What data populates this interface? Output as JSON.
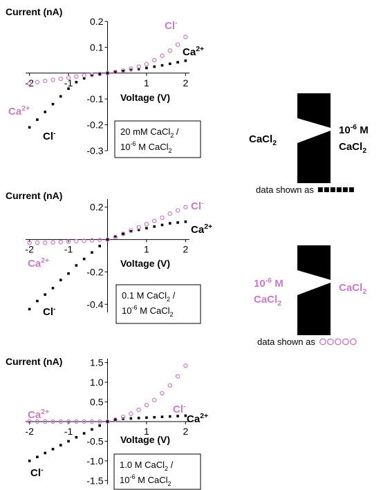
{
  "chart_data": [
    {
      "type": "scatter",
      "ylabel": "Current (nA)",
      "xlabel": "Voltage (V)",
      "x": [
        -2,
        -1.8,
        -1.6,
        -1.4,
        -1.2,
        -1,
        -0.8,
        -0.6,
        -0.4,
        -0.2,
        0,
        0.2,
        0.4,
        0.6,
        0.8,
        1,
        1.2,
        1.4,
        1.6,
        1.8,
        2
      ],
      "series": [
        {
          "color": "#000000",
          "marker": "square",
          "values": [
            -0.21,
            -0.18,
            -0.15,
            -0.12,
            -0.09,
            -0.06,
            -0.035,
            -0.02,
            -0.01,
            -0.004,
            0,
            0.004,
            0.008,
            0.012,
            0.016,
            0.02,
            0.025,
            0.03,
            0.036,
            0.042,
            0.048
          ]
        },
        {
          "color": "#cc79c8",
          "marker": "circle",
          "values": [
            -0.04,
            -0.035,
            -0.03,
            -0.026,
            -0.022,
            -0.018,
            -0.013,
            -0.009,
            -0.006,
            -0.003,
            0,
            0.005,
            0.01,
            0.017,
            0.025,
            0.035,
            0.05,
            0.067,
            0.087,
            0.11,
            0.14
          ]
        }
      ],
      "xlim": [
        -2.1,
        2.1
      ],
      "xticks": [
        -2,
        -1,
        1,
        2
      ],
      "ylim": [
        -0.3,
        0.2
      ],
      "yticks": [
        -0.3,
        -0.2,
        -0.1,
        0.1,
        0.2
      ],
      "annotations": [
        {
          "color": "#cc79c8",
          "text": [
            {
              "text": "Cl"
            },
            {
              "text": "-",
              "shift": "sup"
            }
          ]
        },
        {
          "color": "#000000",
          "text": [
            {
              "text": "Ca"
            },
            {
              "text": "2+",
              "shift": "sup"
            }
          ]
        },
        {
          "color": "#cc79c8",
          "text": [
            {
              "text": "Ca"
            },
            {
              "text": "2+",
              "shift": "sup"
            }
          ]
        },
        {
          "color": "#000000",
          "text": [
            {
              "text": "Cl"
            },
            {
              "text": "-",
              "shift": "sup"
            }
          ]
        }
      ],
      "box": [
        [
          {
            "text": "20 mM CaCl"
          },
          {
            "text": "2",
            "shift": "sub"
          },
          {
            "text": " /"
          }
        ],
        [
          {
            "text": "10"
          },
          {
            "text": "-6",
            "shift": "sup"
          },
          {
            "text": " M CaCl"
          },
          {
            "text": "2",
            "shift": "sub"
          }
        ]
      ]
    },
    {
      "type": "scatter",
      "ylabel": "Current (nA)",
      "xlabel": "Voltage (V)",
      "x": [
        -2,
        -1.8,
        -1.6,
        -1.4,
        -1.2,
        -1,
        -0.8,
        -0.6,
        -0.4,
        -0.2,
        0,
        0.2,
        0.4,
        0.6,
        0.8,
        1,
        1.2,
        1.4,
        1.6,
        1.8,
        2
      ],
      "series": [
        {
          "color": "#000000",
          "marker": "square",
          "values": [
            -0.43,
            -0.38,
            -0.34,
            -0.3,
            -0.25,
            -0.21,
            -0.16,
            -0.12,
            -0.08,
            -0.04,
            0,
            0.02,
            0.035,
            0.05,
            0.06,
            0.07,
            0.08,
            0.09,
            0.1,
            0.105,
            0.11
          ]
        },
        {
          "color": "#cc79c8",
          "marker": "circle",
          "values": [
            -0.02,
            -0.02,
            -0.02,
            -0.018,
            -0.016,
            -0.013,
            -0.01,
            -0.008,
            -0.005,
            -0.002,
            0,
            0.015,
            0.035,
            0.055,
            0.075,
            0.095,
            0.115,
            0.135,
            0.16,
            0.18,
            0.2
          ]
        }
      ],
      "xlim": [
        -2.1,
        2.1
      ],
      "xticks": [
        -2,
        -1,
        1,
        2
      ],
      "ylim": [
        -0.45,
        0.25
      ],
      "yticks": [
        -0.4,
        -0.2,
        0.2
      ],
      "annotations": [
        {
          "color": "#cc79c8",
          "text": [
            {
              "text": "Cl"
            },
            {
              "text": "-",
              "shift": "sup"
            }
          ]
        },
        {
          "color": "#000000",
          "text": [
            {
              "text": "Ca"
            },
            {
              "text": "2+",
              "shift": "sup"
            }
          ]
        },
        {
          "color": "#cc79c8",
          "text": [
            {
              "text": "Ca"
            },
            {
              "text": "2+",
              "shift": "sup"
            }
          ]
        },
        {
          "color": "#000000",
          "text": [
            {
              "text": "Cl"
            },
            {
              "text": "-",
              "shift": "sup"
            }
          ]
        }
      ],
      "box": [
        [
          {
            "text": "0.1 M CaCl"
          },
          {
            "text": "2",
            "shift": "sub"
          },
          {
            "text": " /"
          }
        ],
        [
          {
            "text": "10"
          },
          {
            "text": "-6",
            "shift": "sup"
          },
          {
            "text": " M CaCl"
          },
          {
            "text": "2",
            "shift": "sub"
          }
        ]
      ]
    },
    {
      "type": "scatter",
      "ylabel": "Current (nA)",
      "xlabel": "Voltage (V)",
      "x": [
        -2,
        -1.8,
        -1.6,
        -1.4,
        -1.2,
        -1,
        -0.8,
        -0.6,
        -0.4,
        -0.2,
        0,
        0.2,
        0.4,
        0.6,
        0.8,
        1,
        1.2,
        1.4,
        1.6,
        1.8,
        2
      ],
      "series": [
        {
          "color": "#000000",
          "marker": "square",
          "values": [
            -1.0,
            -0.9,
            -0.8,
            -0.7,
            -0.6,
            -0.5,
            -0.4,
            -0.3,
            -0.2,
            -0.1,
            0,
            0.05,
            0.07,
            0.08,
            0.09,
            0.1,
            0.11,
            0.12,
            0.13,
            0.14,
            0.15
          ]
        },
        {
          "color": "#cc79c8",
          "marker": "circle",
          "values": [
            0,
            0,
            0,
            0,
            0,
            0,
            0,
            0,
            0,
            0,
            0,
            0.05,
            0.12,
            0.2,
            0.3,
            0.42,
            0.55,
            0.72,
            0.92,
            1.15,
            1.42
          ]
        }
      ],
      "xlim": [
        -2.1,
        2.1
      ],
      "xticks": [
        -2,
        -1,
        1,
        2
      ],
      "ylim": [
        -1.6,
        1.6
      ],
      "yticks": [
        -1.5,
        {
          "value": -1,
          "label": "-1.0"
        },
        -0.5,
        0.5,
        {
          "value": 1,
          "label": "1.0"
        },
        1.5
      ],
      "annotations": [
        {
          "color": "#cc79c8",
          "text": [
            {
              "text": "Cl"
            },
            {
              "text": "-",
              "shift": "sup"
            }
          ]
        },
        {
          "color": "#000000",
          "text": [
            {
              "text": "Ca"
            },
            {
              "text": "2+",
              "shift": "sup"
            }
          ]
        },
        {
          "color": "#cc79c8",
          "text": [
            {
              "text": "Ca"
            },
            {
              "text": "2+",
              "shift": "sup"
            }
          ]
        },
        {
          "color": "#000000",
          "text": [
            {
              "text": "Cl"
            },
            {
              "text": "-",
              "shift": "sup"
            }
          ]
        }
      ],
      "box": [
        [
          {
            "text": "1.0 M CaCl"
          },
          {
            "text": "2",
            "shift": "sub"
          },
          {
            "text": " /"
          }
        ],
        [
          {
            "text": "10"
          },
          {
            "text": "-6",
            "shift": "sup"
          },
          {
            "text": " M CaCl"
          },
          {
            "text": "2",
            "shift": "sub"
          }
        ]
      ]
    }
  ],
  "diagrams": [
    {
      "color": "#000000",
      "marker": "square",
      "marker_color": "#000000",
      "left": [
        [
          {
            "text": "CaCl"
          },
          {
            "text": "2",
            "shift": "sub"
          }
        ]
      ],
      "right": [
        [
          {
            "text": "10"
          },
          {
            "text": "-6",
            "shift": "sup"
          },
          {
            "text": " M"
          }
        ],
        [
          {
            "text": "CaCl"
          },
          {
            "text": "2",
            "shift": "sub"
          }
        ]
      ],
      "caption": "data shown as"
    },
    {
      "color": "#cc79c8",
      "marker": "circle",
      "marker_color": "#cc79c8",
      "left": [
        [
          {
            "text": "10"
          },
          {
            "text": "-6",
            "shift": "sup"
          },
          {
            "text": " M"
          }
        ],
        [
          {
            "text": "CaCl"
          },
          {
            "text": "2",
            "shift": "sub"
          }
        ]
      ],
      "right": [
        [
          {
            "text": "CaCl"
          },
          {
            "text": "2",
            "shift": "sub"
          }
        ]
      ],
      "caption": "data shown as"
    }
  ]
}
